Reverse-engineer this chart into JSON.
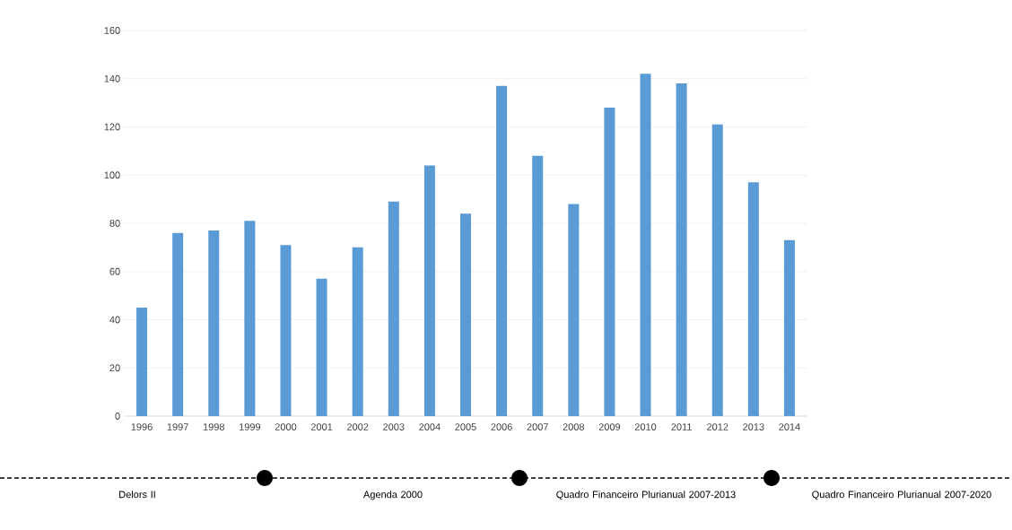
{
  "chart_data": {
    "type": "bar",
    "categories": [
      "1996",
      "1997",
      "1998",
      "1999",
      "2000",
      "2001",
      "2002",
      "2003",
      "2004",
      "2005",
      "2006",
      "2007",
      "2008",
      "2009",
      "2010",
      "2011",
      "2012",
      "2013",
      "2014"
    ],
    "values": [
      45,
      76,
      77,
      81,
      71,
      57,
      70,
      89,
      104,
      84,
      137,
      108,
      88,
      128,
      142,
      138,
      121,
      97,
      73
    ],
    "color": "#5b9bd5",
    "ylim": [
      0,
      160
    ],
    "yticks": [
      0,
      20,
      40,
      60,
      80,
      100,
      120,
      140,
      160
    ],
    "grid": "y",
    "annotations": [
      "Delors II",
      "Agenda 2000",
      "Quadro Financeiro Plurianual 2007-2013",
      "Quadro Financeiro Plurianual 2007-2020"
    ]
  }
}
